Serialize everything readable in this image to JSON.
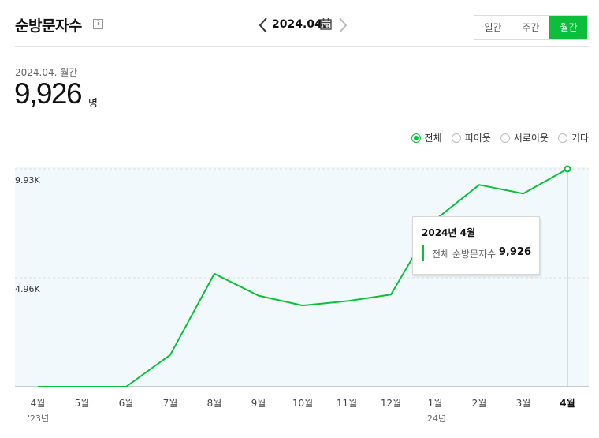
{
  "header": {
    "title": "순방문자수",
    "help_icon": "?",
    "period": "2024.04.",
    "tabs": [
      {
        "label": "일간",
        "active": false
      },
      {
        "label": "주간",
        "active": false
      },
      {
        "label": "월간",
        "active": true
      }
    ]
  },
  "summary": {
    "subhead": "2024.04. 월간",
    "value": "9,926",
    "unit": "명"
  },
  "legend": [
    {
      "label": "전체",
      "selected": true
    },
    {
      "label": "피이웃",
      "selected": false
    },
    {
      "label": "서로이웃",
      "selected": false
    },
    {
      "label": "기타",
      "selected": false
    }
  ],
  "tooltip": {
    "title": "2024년 4월",
    "series_name": "전체 순방문자수",
    "value": "9,926"
  },
  "colors": {
    "accent": "#0bbf3a",
    "plot_bg": "#f2f9fd",
    "grid": "#dddddd"
  },
  "chart_data": {
    "type": "line",
    "categories": [
      "4월",
      "5월",
      "6월",
      "7월",
      "8월",
      "9월",
      "10월",
      "11월",
      "12월",
      "1월",
      "2월",
      "3월",
      "4월"
    ],
    "year_labels": [
      "'23년",
      "",
      "",
      "",
      "",
      "",
      "",
      "",
      "",
      "'24년",
      "",
      "",
      ""
    ],
    "series": [
      {
        "values": [
          0,
          0,
          0,
          1450,
          5150,
          4150,
          3700,
          3900,
          4200,
          7600,
          9200,
          8800,
          9926
        ]
      }
    ],
    "ylim": [
      0,
      9926
    ],
    "yticks": [
      4963,
      9926
    ],
    "ytick_labels": [
      "4.96K",
      "9.93K"
    ],
    "highlight_index": 12,
    "grid": true
  }
}
